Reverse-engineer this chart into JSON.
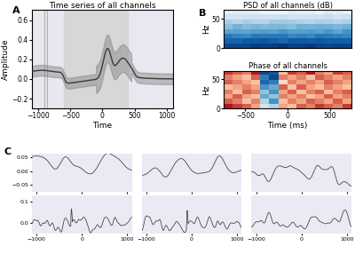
{
  "title_A": "Time series of all channels",
  "title_B_psd": "PSD of all channels (dB)",
  "title_B_phase": "Phase of all channels",
  "xlabel_A": "Time",
  "xlabel_B": "Time (ms)",
  "ylabel_A": "Amplitude",
  "ylabel_B": "Hz",
  "bg_color": "#e8e8f0",
  "line_color": "#3a3a3a",
  "xlim_A": [
    -1100,
    1100
  ],
  "ylim_A": [
    -0.3,
    0.7
  ],
  "xticks_A": [
    -1000,
    -500,
    0,
    500,
    1000
  ],
  "yticks_A": [
    -0.2,
    0.0,
    0.2,
    0.4,
    0.6
  ],
  "xlim_B": [
    -750,
    750
  ],
  "xticks_B": [
    -500,
    0,
    500
  ],
  "ylim_B_psd": [
    0,
    65
  ],
  "yticks_B_psd": [
    0,
    50
  ],
  "ylim_B_phase": [
    0,
    65
  ],
  "yticks_B_phase": [
    0,
    50
  ],
  "n_time_B": 14,
  "n_freq_B": 8,
  "xlim_C": [
    -1100,
    1100
  ],
  "xticks_C": [
    -1000,
    0,
    1000
  ],
  "subplot_bg": "#eaeaf4",
  "ylim_row0": [
    -0.075,
    0.065
  ],
  "yticks_row0": [
    -0.05,
    0.0,
    0.05
  ],
  "ylim_row1": [
    -0.05,
    0.13
  ],
  "yticks_row1": [
    0.0,
    0.1
  ],
  "phase_data": [
    [
      0.7,
      0.6,
      0.5,
      0.8,
      -0.9,
      -0.85,
      0.3,
      0.7,
      0.6,
      0.8,
      0.5,
      0.4,
      0.7,
      0.6
    ],
    [
      0.5,
      0.4,
      0.3,
      0.6,
      -0.7,
      -0.9,
      0.5,
      0.4,
      0.5,
      0.3,
      0.6,
      0.5,
      0.4,
      0.5
    ],
    [
      0.6,
      0.5,
      0.4,
      0.3,
      -0.8,
      -0.7,
      0.2,
      0.5,
      0.4,
      0.5,
      0.4,
      0.6,
      0.5,
      0.4
    ],
    [
      0.3,
      0.4,
      0.5,
      0.4,
      -0.6,
      -0.5,
      0.6,
      0.3,
      0.6,
      0.4,
      0.3,
      0.5,
      0.4,
      0.3
    ],
    [
      0.5,
      0.3,
      0.6,
      0.5,
      -0.4,
      -0.6,
      0.4,
      0.6,
      0.3,
      0.5,
      0.6,
      0.3,
      0.5,
      0.6
    ],
    [
      0.4,
      0.6,
      0.4,
      0.3,
      -0.5,
      -0.4,
      0.5,
      0.4,
      0.5,
      0.3,
      0.4,
      0.6,
      0.4,
      0.5
    ],
    [
      0.6,
      0.5,
      0.3,
      0.5,
      -0.3,
      -0.6,
      0.3,
      0.5,
      0.4,
      0.6,
      0.5,
      0.4,
      0.6,
      0.4
    ],
    [
      0.8,
      0.7,
      0.6,
      0.4,
      -0.2,
      -0.3,
      0.4,
      0.3,
      0.6,
      0.5,
      0.7,
      0.6,
      0.5,
      0.7
    ]
  ]
}
